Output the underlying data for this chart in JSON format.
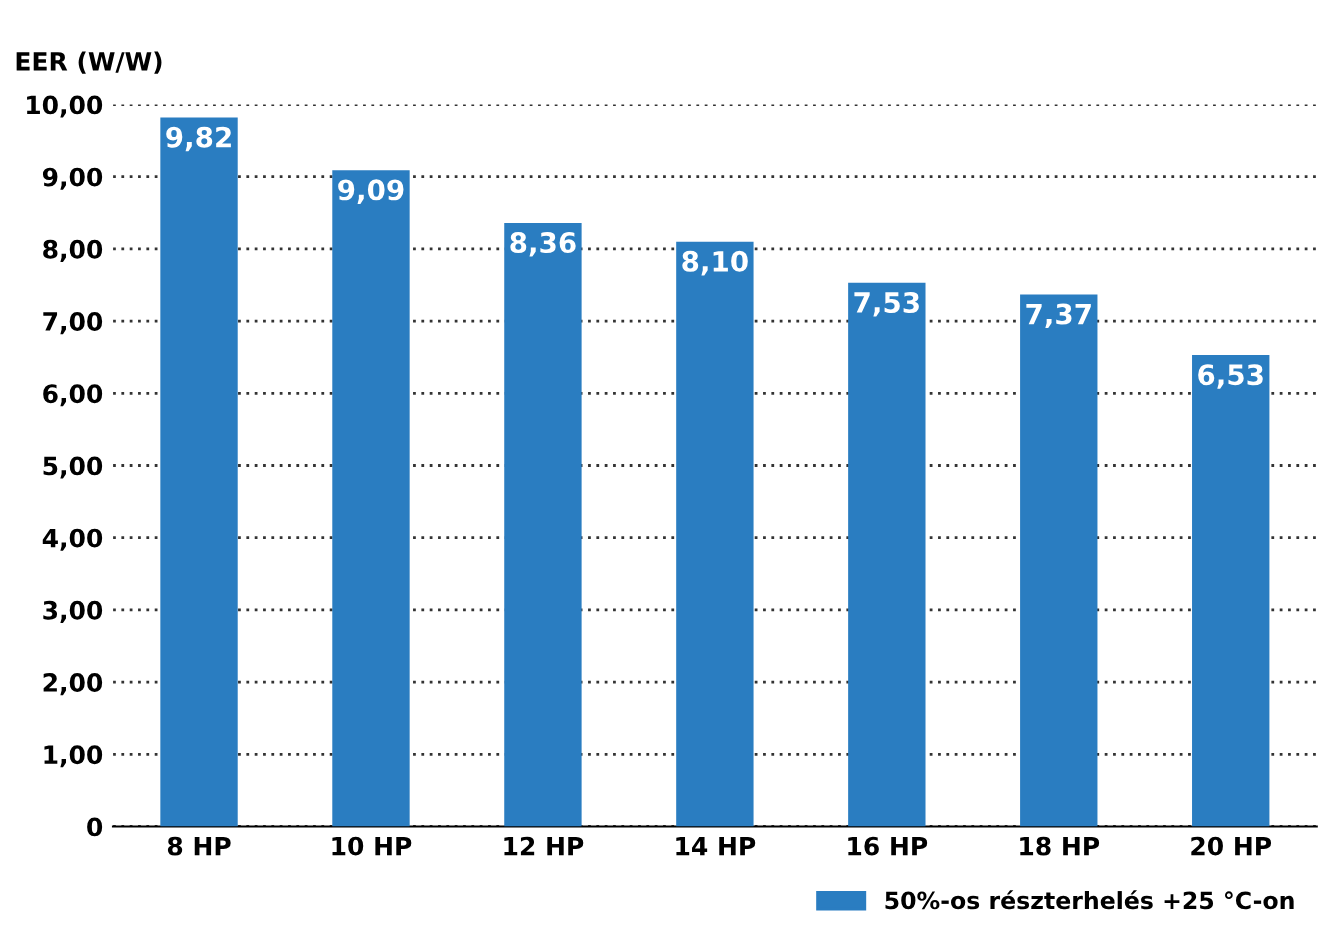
{
  "chart_data": {
    "type": "bar",
    "ylabel": "EER (W/W)",
    "categories": [
      "8 HP",
      "10 HP",
      "12 HP",
      "14 HP",
      "16 HP",
      "18 HP",
      "20 HP"
    ],
    "series": [
      {
        "name": "50%-os részterhelés +25 °C-on",
        "color": "#2a7dc1",
        "values": [
          9.82,
          9.09,
          8.36,
          8.1,
          7.53,
          7.37,
          6.53
        ],
        "value_labels": [
          "9,82",
          "9,09",
          "8,36",
          "8,10",
          "7,53",
          "7,37",
          "6,53"
        ]
      }
    ],
    "ylim": [
      0,
      10
    ],
    "yticks": [
      0,
      {
        "value": 1,
        "label": "1,00"
      },
      {
        "value": 2,
        "label": "2,00"
      },
      {
        "value": 3,
        "label": "3,00"
      },
      {
        "value": 4,
        "label": "4,00"
      },
      {
        "value": 5,
        "label": "5,00"
      },
      {
        "value": 6,
        "label": "6,00"
      },
      {
        "value": 7,
        "label": "7,00"
      },
      {
        "value": 8,
        "label": "8,00"
      },
      {
        "value": 9,
        "label": "9,00"
      },
      {
        "value": 10,
        "label": "10,00"
      }
    ],
    "grid": "y",
    "legend": "bottom right"
  }
}
